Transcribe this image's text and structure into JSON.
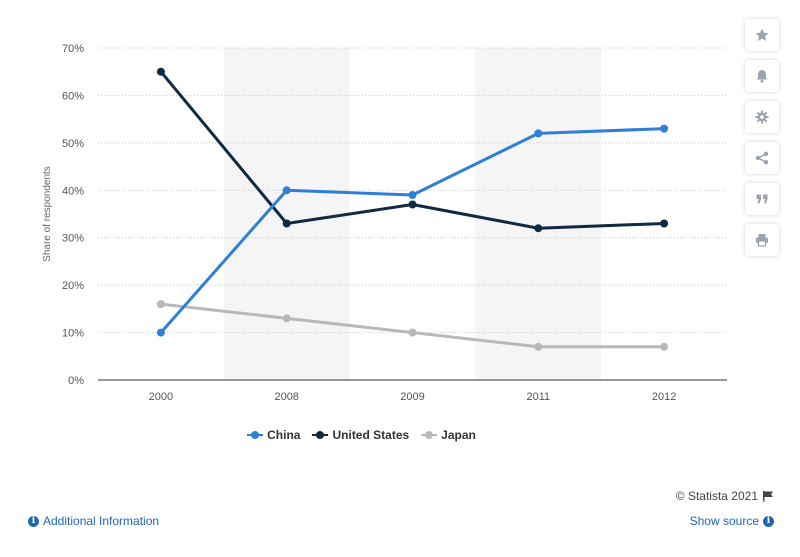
{
  "chart_data": {
    "type": "line",
    "categories": [
      "2000",
      "2008",
      "2009",
      "2011",
      "2012"
    ],
    "series": [
      {
        "name": "China",
        "color": "#2f7ed8",
        "values": [
          10,
          40,
          39,
          52,
          53
        ]
      },
      {
        "name": "United States",
        "color": "#0f2a42",
        "values": [
          65,
          33,
          37,
          32,
          33
        ]
      },
      {
        "name": "Japan",
        "color": "#b8b8b8",
        "values": [
          16,
          13,
          10,
          7,
          7
        ]
      }
    ],
    "ylabel": "Share of respondents",
    "ylim": [
      0,
      70
    ],
    "yticks": [
      "0%",
      "10%",
      "20%",
      "30%",
      "40%",
      "50%",
      "60%",
      "70%"
    ],
    "grid": true,
    "legend_position": "bottom"
  },
  "toolbar": {
    "icons": [
      "star-icon",
      "bell-icon",
      "gear-icon",
      "share-icon",
      "quote-icon",
      "print-icon"
    ]
  },
  "credit": {
    "text": "© Statista 2021"
  },
  "footer": {
    "additional_info": "Additional Information",
    "show_source": "Show source"
  }
}
